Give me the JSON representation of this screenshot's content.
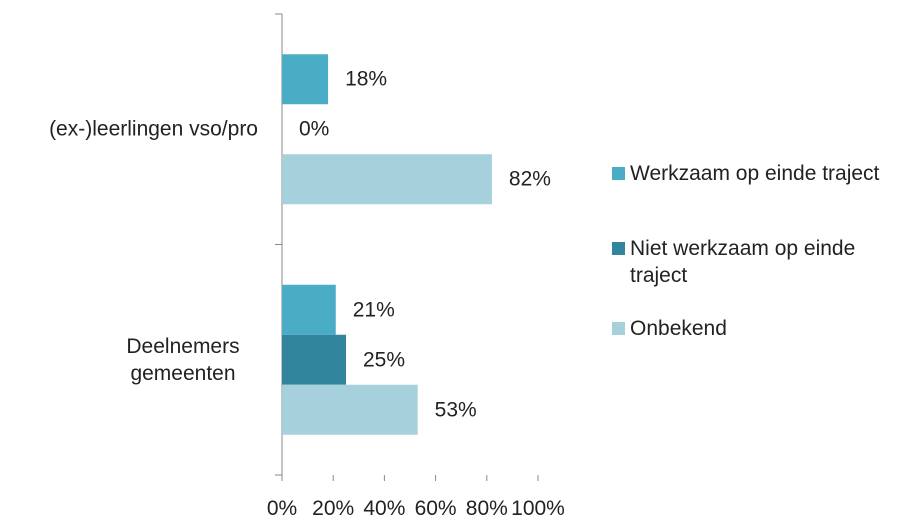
{
  "chart_data": {
    "type": "bar",
    "orientation": "horizontal",
    "categories": [
      "(ex-)leerlingen vso/pro",
      "Deelnemers gemeenten"
    ],
    "series": [
      {
        "name": "Werkzaam op einde traject",
        "color": "#4bacc6",
        "values": [
          18,
          21
        ],
        "value_labels": [
          "18%",
          "21%"
        ]
      },
      {
        "name": "Niet werkzaam op einde traject",
        "color": "#31859c",
        "values": [
          0,
          25
        ],
        "value_labels": [
          "0%",
          "25%"
        ]
      },
      {
        "name": "Onbekend",
        "color": "#a5d0dc",
        "values": [
          82,
          53
        ],
        "value_labels": [
          "82%",
          "53%"
        ]
      }
    ],
    "xlim": [
      0,
      100
    ],
    "xticks": [
      {
        "value": 0,
        "label": "0%"
      },
      {
        "value": 20,
        "label": "20%"
      },
      {
        "value": 40,
        "label": "40%"
      },
      {
        "value": 60,
        "label": "60%"
      },
      {
        "value": 80,
        "label": "80%"
      },
      {
        "value": 100,
        "label": "100%"
      }
    ],
    "legend": "right"
  }
}
